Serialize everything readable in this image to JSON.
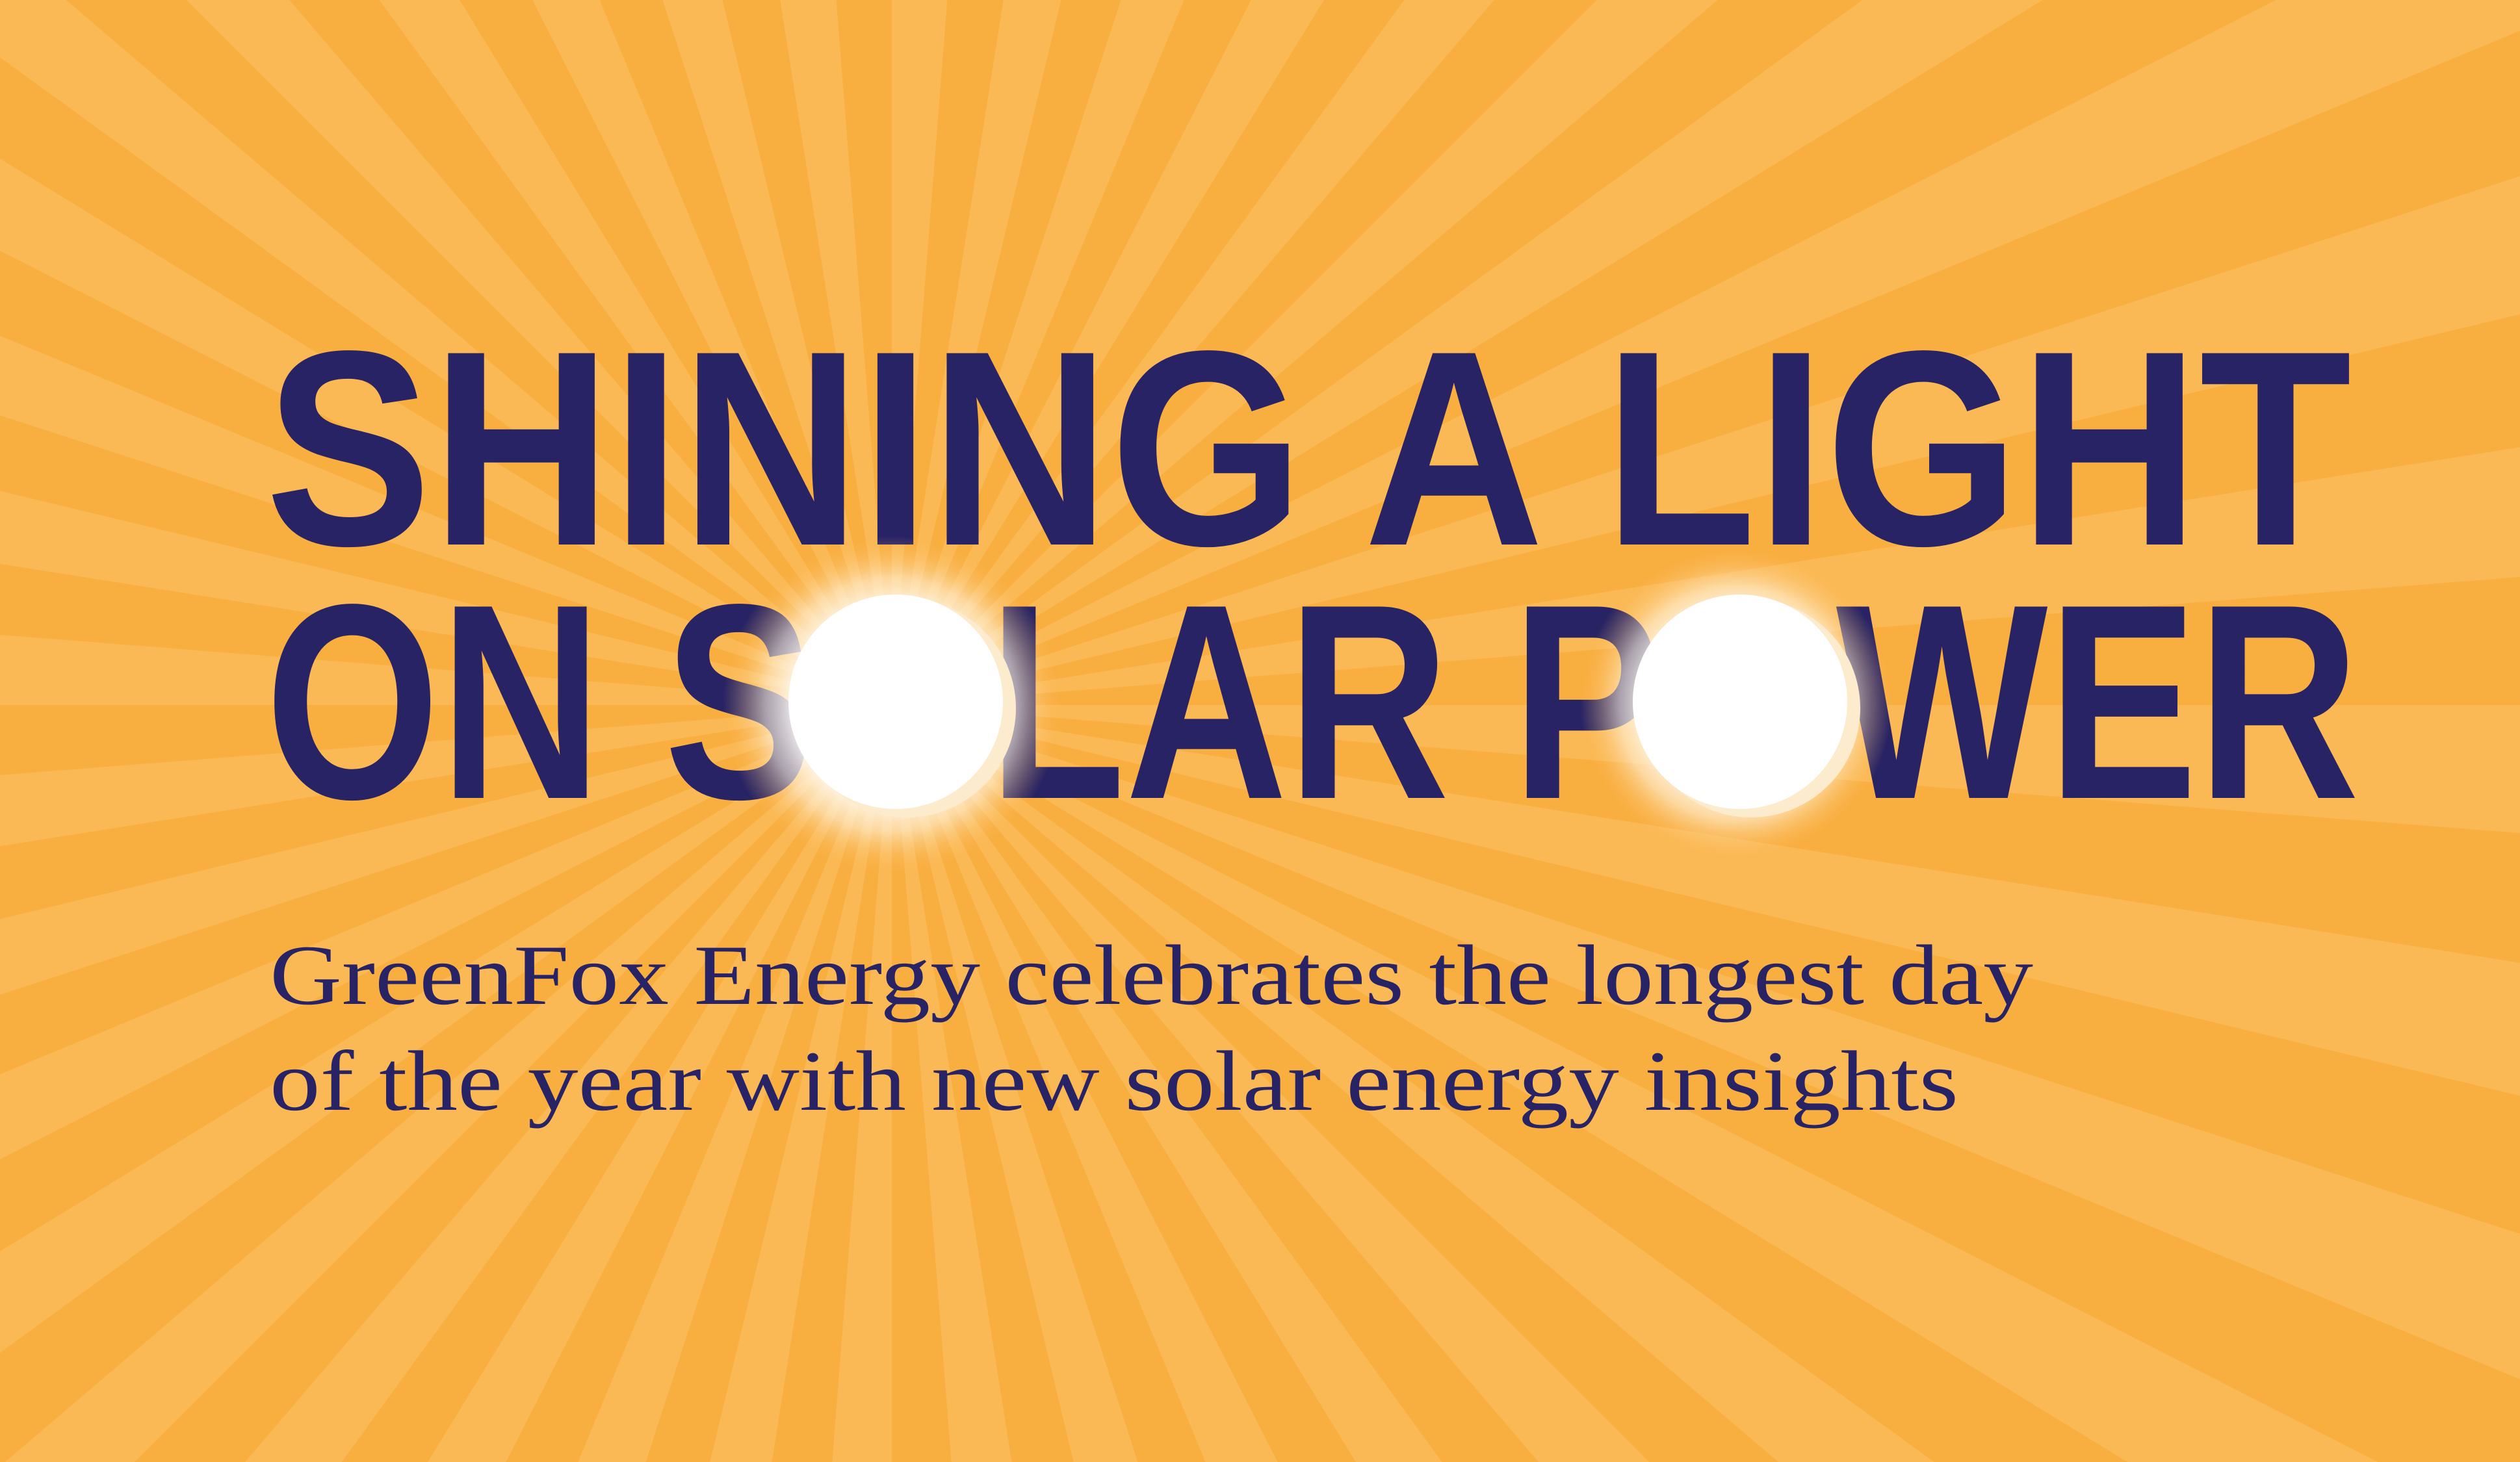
{
  "colors": {
    "background": "#F9AE40",
    "ray_light": "#FBB955",
    "text": "#282364",
    "sun": "#FFFFFF",
    "sun_halo": "#FDEBCD"
  },
  "headline": {
    "line1": "SHINING A LIGHT",
    "line2": "ON SOLAR POWER"
  },
  "subtitle": {
    "line1": "GreenFox Energy celebrates the longest day",
    "line2": "of the year with new solar energy insights"
  }
}
